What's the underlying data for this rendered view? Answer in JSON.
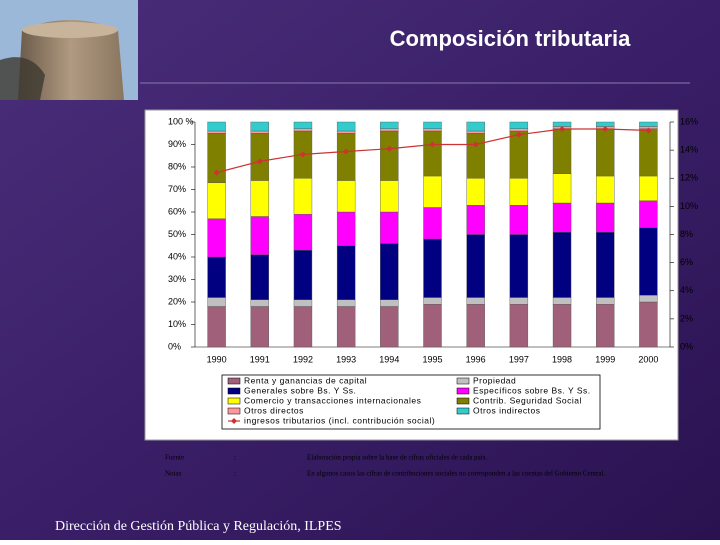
{
  "chart_data": {
    "type": "bar",
    "stacked": true,
    "title": "Composición tributaria",
    "categories": [
      "1990",
      "1991",
      "1992",
      "1993",
      "1994",
      "1995",
      "1996",
      "1997",
      "1998",
      "1999",
      "2000"
    ],
    "series": [
      {
        "name": "Renta y ganancias de capital",
        "color": "#a0607a",
        "values": [
          18,
          18,
          18,
          18,
          18,
          19,
          19,
          19,
          19,
          19,
          20
        ]
      },
      {
        "name": "Propiedad",
        "color": "#c0c0c0",
        "values": [
          4,
          3,
          3,
          3,
          3,
          3,
          3,
          3,
          3,
          3,
          3
        ]
      },
      {
        "name": "Generales sobre Bs. Y Ss.",
        "color": "#000080",
        "values": [
          18,
          20,
          22,
          24,
          25,
          26,
          28,
          28,
          29,
          29,
          30
        ]
      },
      {
        "name": "Específicos sobre Bs. Y Ss.",
        "color": "#ff00ff",
        "values": [
          17,
          17,
          16,
          15,
          14,
          14,
          13,
          13,
          13,
          13,
          12
        ]
      },
      {
        "name": "Comercio y transacciones internacionales",
        "color": "#ffff00",
        "values": [
          16,
          16,
          16,
          14,
          14,
          14,
          12,
          12,
          13,
          12,
          11
        ]
      },
      {
        "name": "Contrib. Seguridad Social",
        "color": "#808000",
        "values": [
          22,
          21,
          21,
          21,
          22,
          20,
          20,
          21,
          20,
          21,
          21
        ]
      },
      {
        "name": "Otros directos",
        "color": "#ff9999",
        "values": [
          1,
          1,
          1,
          1,
          1,
          1,
          1,
          1,
          1,
          1,
          1
        ]
      },
      {
        "name": "Otros indirectos",
        "color": "#33cccc",
        "values": [
          4,
          4,
          3,
          4,
          3,
          3,
          4,
          3,
          2,
          2,
          2
        ]
      },
      {
        "name": "ingresos tributarios (incl. contribución social)",
        "color": "#cc3333",
        "axis": "y2",
        "values": [
          12.4,
          13.2,
          13.7,
          13.9,
          14.1,
          14.4,
          14.4,
          15.1,
          15.5,
          15.5,
          15.4
        ]
      }
    ],
    "ylim": [
      0,
      100
    ],
    "yticks": [
      {
        "value": 0,
        "label": "0%"
      },
      {
        "value": 10,
        "label": "10%"
      },
      {
        "value": 20,
        "label": "20%"
      },
      {
        "value": 30,
        "label": "30%"
      },
      {
        "value": 40,
        "label": "40%"
      },
      {
        "value": 50,
        "label": "50%"
      },
      {
        "value": 60,
        "label": "60%"
      },
      {
        "value": 70,
        "label": "70%"
      },
      {
        "value": 80,
        "label": "80%"
      },
      {
        "value": 90,
        "label": "90%"
      },
      {
        "value": 100,
        "label": "100 %"
      }
    ],
    "y2lim": [
      0,
      16
    ],
    "y2ticks": [
      {
        "value": 0,
        "label": "0%"
      },
      {
        "value": 2,
        "label": "2%"
      },
      {
        "value": 4,
        "label": "4%"
      },
      {
        "value": 6,
        "label": "6%"
      },
      {
        "value": 8,
        "label": "8%"
      },
      {
        "value": 10,
        "label": "10%"
      },
      {
        "value": 12,
        "label": "12%"
      },
      {
        "value": 14,
        "label": "14%"
      },
      {
        "value": 16,
        "label": "16%"
      }
    ]
  },
  "notes": [
    {
      "label": "Fuente",
      "sep": ":",
      "text": "Elaboración propia sobre la base de cifras oficiales de cada país."
    },
    {
      "label": "Notas",
      "sep": ":",
      "text": "En algunos casos las cifras de contribuciones sociales no corresponden a las cuentas del Gobierno Central."
    }
  ],
  "footer": "Dirección de Gestión Pública y Regulación, ILPES"
}
